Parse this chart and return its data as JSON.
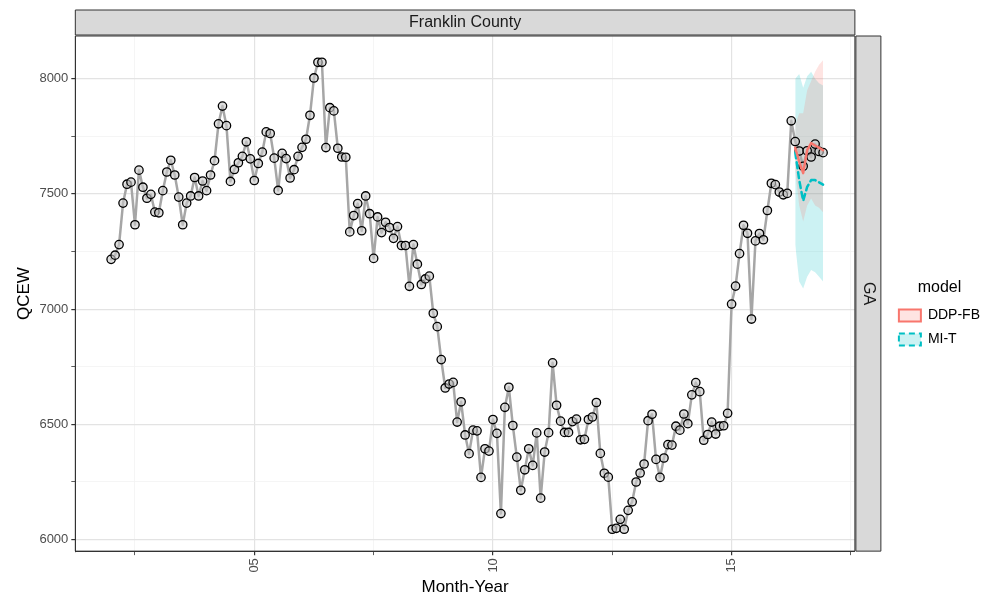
{
  "chart_data": {
    "type": "line",
    "title": "Franklin County",
    "xlabel": "Month-Year",
    "ylabel": "QCEW",
    "legend_title": "model",
    "legend": "right",
    "grid": true,
    "annotations": [
      "GA"
    ],
    "xlim": [
      "2001-04",
      "2017-08"
    ],
    "ylim": [
      5950,
      8185
    ],
    "xticks": [
      {
        "value": "2002-07",
        "label": null
      },
      {
        "value": "2005-01",
        "label": "05"
      },
      {
        "value": "2007-07",
        "label": null
      },
      {
        "value": "2010-01",
        "label": "10"
      },
      {
        "value": "2012-07",
        "label": null
      },
      {
        "value": "2015-01",
        "label": "15"
      },
      {
        "value": "2017-07",
        "label": null
      }
    ],
    "yticks": [
      6000,
      {
        "value": 6250,
        "label": null
      },
      6500,
      {
        "value": 6750,
        "label": null
      },
      7000,
      {
        "value": 7250,
        "label": null
      },
      7500,
      {
        "value": 7750,
        "label": null
      },
      8000
    ],
    "x": [
      "2002-01",
      "2002-02",
      "2002-03",
      "2002-04",
      "2002-05",
      "2002-06",
      "2002-07",
      "2002-08",
      "2002-09",
      "2002-10",
      "2002-11",
      "2002-12",
      "2003-01",
      "2003-02",
      "2003-03",
      "2003-04",
      "2003-05",
      "2003-06",
      "2003-07",
      "2003-08",
      "2003-09",
      "2003-10",
      "2003-11",
      "2003-12",
      "2004-01",
      "2004-02",
      "2004-03",
      "2004-04",
      "2004-05",
      "2004-06",
      "2004-07",
      "2004-08",
      "2004-09",
      "2004-10",
      "2004-11",
      "2004-12",
      "2005-01",
      "2005-02",
      "2005-03",
      "2005-04",
      "2005-05",
      "2005-06",
      "2005-07",
      "2005-08",
      "2005-09",
      "2005-10",
      "2005-11",
      "2005-12",
      "2006-01",
      "2006-02",
      "2006-03",
      "2006-04",
      "2006-05",
      "2006-06",
      "2006-07",
      "2006-08",
      "2006-09",
      "2006-10",
      "2006-11",
      "2006-12",
      "2007-01",
      "2007-02",
      "2007-03",
      "2007-04",
      "2007-05",
      "2007-06",
      "2007-07",
      "2007-08",
      "2007-09",
      "2007-10",
      "2007-11",
      "2007-12",
      "2008-01",
      "2008-02",
      "2008-03",
      "2008-04",
      "2008-05",
      "2008-06",
      "2008-07",
      "2008-08",
      "2008-09",
      "2008-10",
      "2008-11",
      "2008-12",
      "2009-01",
      "2009-02",
      "2009-03",
      "2009-04",
      "2009-05",
      "2009-06",
      "2009-07",
      "2009-08",
      "2009-09",
      "2009-10",
      "2009-11",
      "2009-12",
      "2010-01",
      "2010-02",
      "2010-03",
      "2010-04",
      "2010-05",
      "2010-06",
      "2010-07",
      "2010-08",
      "2010-09",
      "2010-10",
      "2010-11",
      "2010-12",
      "2011-01",
      "2011-02",
      "2011-03",
      "2011-04",
      "2011-05",
      "2011-06",
      "2011-07",
      "2011-08",
      "2011-09",
      "2011-10",
      "2011-11",
      "2011-12",
      "2012-01",
      "2012-02",
      "2012-03",
      "2012-04",
      "2012-05",
      "2012-06",
      "2012-07",
      "2012-08",
      "2012-09",
      "2012-10",
      "2012-11",
      "2012-12",
      "2013-01",
      "2013-02",
      "2013-03",
      "2013-04",
      "2013-05",
      "2013-06",
      "2013-07",
      "2013-08",
      "2013-09",
      "2013-10",
      "2013-11",
      "2013-12",
      "2014-01",
      "2014-02",
      "2014-03",
      "2014-04",
      "2014-05",
      "2014-06",
      "2014-07",
      "2014-08",
      "2014-09",
      "2014-10",
      "2014-11",
      "2014-12",
      "2015-01",
      "2015-02",
      "2015-03",
      "2015-04",
      "2015-05",
      "2015-06",
      "2015-07",
      "2015-08",
      "2015-09",
      "2015-10",
      "2015-11",
      "2015-12",
      "2016-01",
      "2016-02",
      "2016-03",
      "2016-04",
      "2016-05",
      "2016-06",
      "2016-07",
      "2016-08",
      "2016-09",
      "2016-10",
      "2016-11",
      "2016-12"
    ],
    "series": [
      {
        "color": "#a6a6a6",
        "marker": "circle",
        "values": [
          7216,
          7234,
          7280,
          7460,
          7542,
          7551,
          7366,
          7603,
          7529,
          7481,
          7498,
          7421,
          7418,
          7514,
          7595,
          7646,
          7582,
          7486,
          7366,
          7460,
          7491,
          7571,
          7491,
          7556,
          7514,
          7582,
          7644,
          7804,
          7881,
          7796,
          7554,
          7606,
          7635,
          7663,
          7726,
          7652,
          7558,
          7632,
          7681,
          7769,
          7762,
          7655,
          7515,
          7676,
          7653,
          7569,
          7605,
          7663,
          7702,
          7737,
          7841,
          8003,
          8071,
          8071,
          7701,
          7874,
          7860,
          7698,
          7660,
          7659,
          7335,
          7406,
          7458,
          7340,
          7491,
          7414,
          7220,
          7400,
          7332,
          7377,
          7354,
          7307,
          7358,
          7276,
          7276,
          7099,
          7280,
          7195,
          7107,
          7131,
          7143,
          6982,
          6924,
          6781,
          6658,
          6675,
          6682,
          6510,
          6598,
          6454,
          6373,
          6475,
          6472,
          6270,
          6394,
          6384,
          6521,
          6461,
          6113,
          6574,
          6661,
          6495,
          6358,
          6214,
          6303,
          6394,
          6322,
          6463,
          6180,
          6380,
          6464,
          6767,
          6583,
          6514,
          6465,
          6465,
          6512,
          6523,
          6433,
          6435,
          6521,
          6532,
          6595,
          6374,
          6288,
          6271,
          6045,
          6049,
          6088,
          6045,
          6127,
          6164,
          6250,
          6289,
          6328,
          6516,
          6544,
          6348,
          6270,
          6354,
          6412,
          6410,
          6492,
          6475,
          6545,
          6503,
          6628,
          6681,
          6642,
          6431,
          6456,
          6510,
          6458,
          6492,
          6494,
          6548,
          7022,
          7100,
          7241,
          7364,
          7329,
          6957,
          7296,
          7328,
          7301,
          7428,
          7546,
          7540,
          7508,
          7496,
          7502,
          7817,
          7727,
          7686,
          7620,
          7687,
          7660,
          7716,
          7684,
          7679
        ]
      },
      {
        "name": "DDP-FB",
        "color": "#f8766d",
        "marker": "none",
        "line_style": "solid",
        "x": [
          "2016-05",
          "2016-06",
          "2016-07",
          "2016-08",
          "2016-09",
          "2016-10",
          "2016-11",
          "2016-12"
        ],
        "values": [
          7700,
          7640,
          7590,
          7690,
          7720,
          7710,
          7700,
          7690
        ],
        "lower": [
          7600,
          7450,
          7380,
          7450,
          7480,
          7450,
          7440,
          7420
        ],
        "upper": [
          7800,
          7850,
          7850,
          7950,
          7990,
          8030,
          8060,
          8080
        ]
      },
      {
        "name": "MI-T",
        "color": "#00bfc4",
        "marker": "none",
        "line_style": "dashed",
        "x": [
          "2016-05",
          "2016-06",
          "2016-07",
          "2016-08",
          "2016-09",
          "2016-10",
          "2016-11",
          "2016-12"
        ],
        "values": [
          7680,
          7560,
          7470,
          7530,
          7560,
          7560,
          7550,
          7540
        ],
        "lower": [
          7280,
          7120,
          7090,
          7140,
          7170,
          7160,
          7140,
          7120
        ],
        "upper": [
          8000,
          8020,
          7960,
          8010,
          8030,
          8000,
          7980,
          7970
        ]
      }
    ]
  }
}
